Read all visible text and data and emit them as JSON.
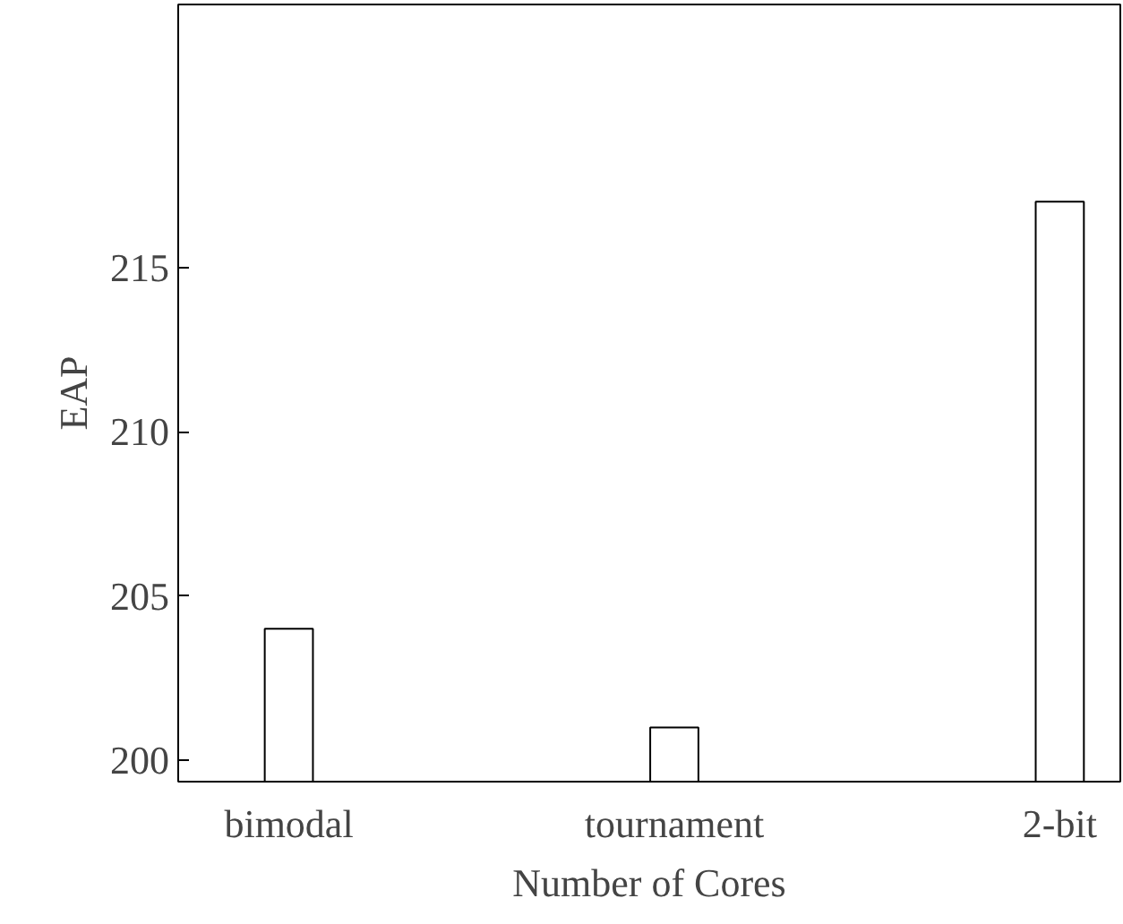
{
  "chart_data": {
    "type": "bar",
    "xlabel": "Number of Cores",
    "ylabel": "EAP",
    "categories": [
      "bimodal",
      "tournament",
      "2-bit"
    ],
    "values": [
      204,
      201,
      217
    ],
    "color": "#ffffff",
    "ylim": [
      199.35,
      223
    ],
    "yticks": [
      200,
      205,
      210,
      215
    ],
    "grid": false
  }
}
